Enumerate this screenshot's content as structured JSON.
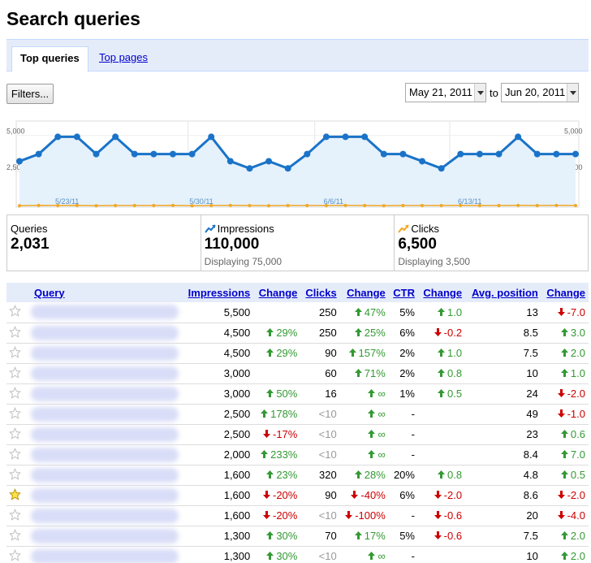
{
  "title": "Search queries",
  "tabs": {
    "active": "Top queries",
    "other": "Top pages"
  },
  "filters_label": "Filters...",
  "date_range": {
    "from": "May 21, 2011",
    "to_label": "to",
    "to": "Jun 20, 2011"
  },
  "chart_data": {
    "type": "line",
    "y_ticks": [
      "5,000",
      "2,500"
    ],
    "ylim": [
      0,
      6000
    ],
    "x_labels": [
      "5/23/11",
      "5/30/11",
      "6/6/11",
      "6/13/11"
    ],
    "series": [
      {
        "color": "#1a73c8",
        "values": [
          3200,
          3700,
          4900,
          4900,
          3700,
          4900,
          3700,
          3700,
          3700,
          3700,
          4900,
          3200,
          2700,
          3200,
          2700,
          3700,
          4900,
          4900,
          4900,
          3700,
          3700,
          3200,
          2700,
          3700,
          3700,
          3700,
          4900,
          3700,
          3700,
          3700
        ]
      },
      {
        "color": "#f3a622",
        "values": [
          100,
          120,
          110,
          120,
          100,
          110,
          110,
          110,
          120,
          100,
          110,
          120,
          110,
          100,
          110,
          110,
          110,
          120,
          110,
          100,
          110,
          110,
          110,
          120,
          110,
          110,
          120,
          110,
          120,
          110
        ]
      }
    ],
    "grid": true,
    "colors": {
      "fill": "#e5f1fb"
    }
  },
  "stats": {
    "queries": {
      "label": "Queries",
      "value": "2,031"
    },
    "impressions": {
      "label": "Impressions",
      "value": "110,000",
      "sub": "Displaying 75,000",
      "icon": "trend-icon",
      "color": "#1a73c8"
    },
    "clicks": {
      "label": "Clicks",
      "value": "6,500",
      "sub": "Displaying 3,500",
      "icon": "trend-icon",
      "color": "#f3a622"
    }
  },
  "table": {
    "headers": [
      "Query",
      "Impressions",
      "Change",
      "Clicks",
      "Change",
      "CTR",
      "Change",
      "Avg. position",
      "Change"
    ],
    "rows": [
      {
        "starred": false,
        "impressions": "5,500",
        "imp_change": "",
        "imp_dir": "",
        "clicks": "250",
        "clicks_muted": false,
        "clk_change": "47%",
        "clk_dir": "up",
        "ctr": "5%",
        "ctr_change": "1.0",
        "ctr_dir": "up",
        "pos": "13",
        "pos_change": "-7.0",
        "pos_dir": "down"
      },
      {
        "starred": false,
        "impressions": "4,500",
        "imp_change": "29%",
        "imp_dir": "up",
        "clicks": "250",
        "clicks_muted": false,
        "clk_change": "25%",
        "clk_dir": "up",
        "ctr": "6%",
        "ctr_change": "-0.2",
        "ctr_dir": "down",
        "pos": "8.5",
        "pos_change": "3.0",
        "pos_dir": "up"
      },
      {
        "starred": false,
        "impressions": "4,500",
        "imp_change": "29%",
        "imp_dir": "up",
        "clicks": "90",
        "clicks_muted": false,
        "clk_change": "157%",
        "clk_dir": "up",
        "ctr": "2%",
        "ctr_change": "1.0",
        "ctr_dir": "up",
        "pos": "7.5",
        "pos_change": "2.0",
        "pos_dir": "up"
      },
      {
        "starred": false,
        "impressions": "3,000",
        "imp_change": "",
        "imp_dir": "",
        "clicks": "60",
        "clicks_muted": false,
        "clk_change": "71%",
        "clk_dir": "up",
        "ctr": "2%",
        "ctr_change": "0.8",
        "ctr_dir": "up",
        "pos": "10",
        "pos_change": "1.0",
        "pos_dir": "up"
      },
      {
        "starred": false,
        "impressions": "3,000",
        "imp_change": "50%",
        "imp_dir": "up",
        "clicks": "16",
        "clicks_muted": false,
        "clk_change": "∞",
        "clk_dir": "up",
        "ctr": "1%",
        "ctr_change": "0.5",
        "ctr_dir": "up",
        "pos": "24",
        "pos_change": "-2.0",
        "pos_dir": "down"
      },
      {
        "starred": false,
        "impressions": "2,500",
        "imp_change": "178%",
        "imp_dir": "up",
        "clicks": "<10",
        "clicks_muted": true,
        "clk_change": "∞",
        "clk_dir": "up",
        "ctr": "-",
        "ctr_change": "",
        "ctr_dir": "",
        "pos": "49",
        "pos_change": "-1.0",
        "pos_dir": "down"
      },
      {
        "starred": false,
        "impressions": "2,500",
        "imp_change": "-17%",
        "imp_dir": "down",
        "clicks": "<10",
        "clicks_muted": true,
        "clk_change": "∞",
        "clk_dir": "up",
        "ctr": "-",
        "ctr_change": "",
        "ctr_dir": "",
        "pos": "23",
        "pos_change": "0.6",
        "pos_dir": "up"
      },
      {
        "starred": false,
        "impressions": "2,000",
        "imp_change": "233%",
        "imp_dir": "up",
        "clicks": "<10",
        "clicks_muted": true,
        "clk_change": "∞",
        "clk_dir": "up",
        "ctr": "-",
        "ctr_change": "",
        "ctr_dir": "",
        "pos": "8.4",
        "pos_change": "7.0",
        "pos_dir": "up"
      },
      {
        "starred": false,
        "impressions": "1,600",
        "imp_change": "23%",
        "imp_dir": "up",
        "clicks": "320",
        "clicks_muted": false,
        "clk_change": "28%",
        "clk_dir": "up",
        "ctr": "20%",
        "ctr_change": "0.8",
        "ctr_dir": "up",
        "pos": "4.8",
        "pos_change": "0.5",
        "pos_dir": "up"
      },
      {
        "starred": true,
        "impressions": "1,600",
        "imp_change": "-20%",
        "imp_dir": "down",
        "clicks": "90",
        "clicks_muted": false,
        "clk_change": "-40%",
        "clk_dir": "down",
        "ctr": "6%",
        "ctr_change": "-2.0",
        "ctr_dir": "down",
        "pos": "8.6",
        "pos_change": "-2.0",
        "pos_dir": "down"
      },
      {
        "starred": false,
        "impressions": "1,600",
        "imp_change": "-20%",
        "imp_dir": "down",
        "clicks": "<10",
        "clicks_muted": true,
        "clk_change": "-100%",
        "clk_dir": "down",
        "ctr": "-",
        "ctr_change": "-0.6",
        "ctr_dir": "down",
        "pos": "20",
        "pos_change": "-4.0",
        "pos_dir": "down"
      },
      {
        "starred": false,
        "impressions": "1,300",
        "imp_change": "30%",
        "imp_dir": "up",
        "clicks": "70",
        "clicks_muted": false,
        "clk_change": "17%",
        "clk_dir": "up",
        "ctr": "5%",
        "ctr_change": "-0.6",
        "ctr_dir": "down",
        "pos": "7.5",
        "pos_change": "2.0",
        "pos_dir": "up"
      },
      {
        "starred": false,
        "impressions": "1,300",
        "imp_change": "30%",
        "imp_dir": "up",
        "clicks": "<10",
        "clicks_muted": true,
        "clk_change": "∞",
        "clk_dir": "up",
        "ctr": "-",
        "ctr_change": "",
        "ctr_dir": "",
        "pos": "10",
        "pos_change": "2.0",
        "pos_dir": "up"
      }
    ]
  }
}
